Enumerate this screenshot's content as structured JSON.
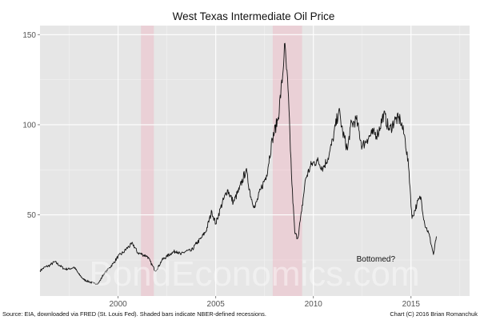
{
  "chart_data": {
    "type": "line",
    "title": "West Texas Intermediate Oil Price",
    "xlabel": "",
    "ylabel": "",
    "xlim": [
      1996.0,
      2018.0
    ],
    "ylim": [
      5,
      155
    ],
    "x_ticks": [
      2000,
      2005,
      2010,
      2015
    ],
    "x_tick_labels": [
      "2000",
      "2005",
      "2010",
      "2015"
    ],
    "y_ticks": [
      50,
      100,
      150
    ],
    "y_tick_labels": [
      "50",
      "100",
      "150"
    ],
    "grid": true,
    "recessions": [
      {
        "start": 2001.17,
        "end": 2001.83
      },
      {
        "start": 2007.92,
        "end": 2009.42
      }
    ],
    "annotation": {
      "text": "Bottomed?",
      "x": 2013.2,
      "y": 24
    },
    "watermark": "BondEconomics.com",
    "series": [
      {
        "name": "WTI",
        "x": [
          1996.0,
          1996.25,
          1996.5,
          1996.75,
          1997.0,
          1997.25,
          1997.5,
          1997.75,
          1998.0,
          1998.25,
          1998.5,
          1998.75,
          1999.0,
          1999.25,
          1999.5,
          1999.75,
          2000.0,
          2000.25,
          2000.5,
          2000.75,
          2001.0,
          2001.25,
          2001.5,
          2001.75,
          2001.9,
          2002.0,
          2002.25,
          2002.5,
          2002.75,
          2003.0,
          2003.2,
          2003.5,
          2003.75,
          2004.0,
          2004.25,
          2004.5,
          2004.8,
          2005.0,
          2005.25,
          2005.6,
          2005.9,
          2006.2,
          2006.55,
          2006.8,
          2007.0,
          2007.3,
          2007.6,
          2007.9,
          2008.2,
          2008.45,
          2008.52,
          2008.7,
          2008.9,
          2009.05,
          2009.2,
          2009.4,
          2009.6,
          2009.9,
          2010.2,
          2010.5,
          2010.8,
          2011.0,
          2011.3,
          2011.5,
          2011.75,
          2011.9,
          2012.2,
          2012.5,
          2012.75,
          2013.0,
          2013.3,
          2013.6,
          2013.9,
          2014.2,
          2014.45,
          2014.7,
          2014.9,
          2015.05,
          2015.3,
          2015.5,
          2015.7,
          2015.9,
          2016.05,
          2016.15,
          2016.3
        ],
        "y": [
          19,
          21,
          22,
          24,
          22,
          20,
          20,
          21,
          17,
          14,
          13,
          12,
          12,
          17,
          20,
          23,
          27,
          29,
          32,
          34,
          29,
          28,
          27,
          22,
          19,
          20,
          25,
          27,
          29,
          30,
          28,
          30,
          30,
          34,
          37,
          41,
          52,
          45,
          54,
          64,
          57,
          64,
          75,
          60,
          54,
          64,
          72,
          92,
          104,
          130,
          145,
          120,
          67,
          40,
          37,
          52,
          70,
          78,
          80,
          76,
          83,
          92,
          108,
          96,
          86,
          99,
          103,
          88,
          92,
          95,
          95,
          106,
          97,
          103,
          103,
          92,
          74,
          48,
          56,
          60,
          45,
          40,
          33,
          28,
          38
        ]
      }
    ]
  },
  "footer": {
    "source": "Source: EIA, downloaded via FRED (St. Louis Fed). Shaded bars indicate NBER-defined recessions.",
    "credit": "Chart (C) 2016 Brian Romanchuk"
  }
}
